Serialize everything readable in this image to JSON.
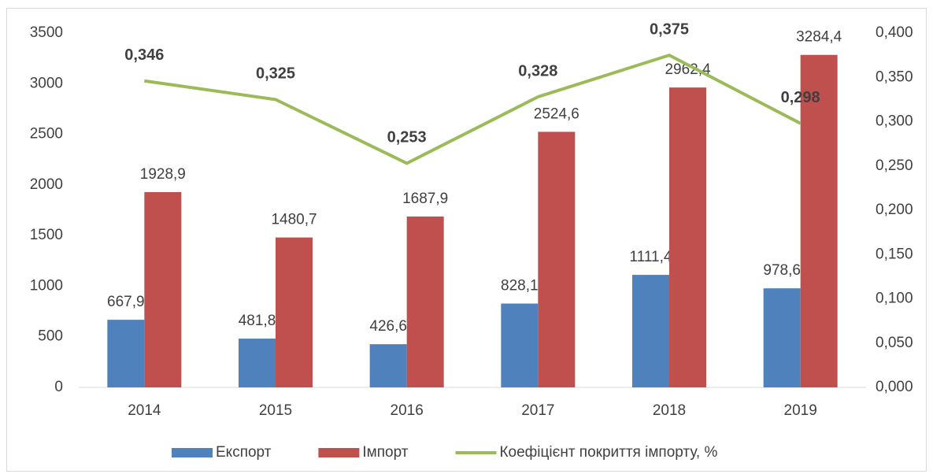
{
  "chart_data": {
    "type": "bar",
    "categories": [
      "2014",
      "2015",
      "2016",
      "2017",
      "2018",
      "2019"
    ],
    "series": [
      {
        "name": "Експорт",
        "color": "#4f81bd",
        "values": [
          667.9,
          481.8,
          426.6,
          828.1,
          1111.4,
          978.6
        ],
        "value_labels": [
          "667,9",
          "481,8",
          "426,6",
          "828,1",
          "1111,4",
          "978,6"
        ]
      },
      {
        "name": "Імпорт",
        "color": "#c0504d",
        "values": [
          1928.9,
          1480.7,
          1687.9,
          2524.6,
          2962.4,
          3284.4
        ],
        "value_labels": [
          "1928,9",
          "1480,7",
          "1687,9",
          "2524,6",
          "2962,4",
          "3284,4"
        ]
      },
      {
        "name": "Коефіцієнт покриття імпорту, %",
        "color": "#9bbb59",
        "type": "line",
        "axis": "y2",
        "values": [
          0.346,
          0.325,
          0.253,
          0.328,
          0.375,
          0.298
        ],
        "value_labels": [
          "0,346",
          "0,325",
          "0,253",
          "0,328",
          "0,375",
          "0,298"
        ]
      }
    ],
    "ylim": [
      0,
      3500
    ],
    "yticks": [
      0,
      500,
      1000,
      1500,
      2000,
      2500,
      3000,
      3500
    ],
    "y2lim": [
      0,
      0.4
    ],
    "y2ticks": [
      {
        "value": 0,
        "label": "0,000"
      },
      {
        "value": 0.05,
        "label": "0,050"
      },
      {
        "value": 0.1,
        "label": "0,100"
      },
      {
        "value": 0.15,
        "label": "0,150"
      },
      {
        "value": 0.2,
        "label": "0,200"
      },
      {
        "value": 0.25,
        "label": "0,250"
      },
      {
        "value": 0.3,
        "label": "0,300"
      },
      {
        "value": 0.35,
        "label": "0,350"
      },
      {
        "value": 0.4,
        "label": "0,400"
      }
    ],
    "grid": false,
    "legend": "bottom"
  }
}
